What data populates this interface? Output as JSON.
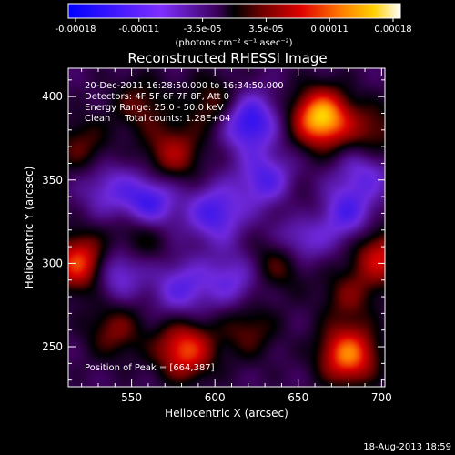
{
  "chart_data": {
    "type": "heatmap",
    "title": "Reconstructed RHESSI Image",
    "xlabel": "Heliocentric X (arcsec)",
    "ylabel": "Heliocentric Y (arcsec)",
    "xlim": [
      512,
      702
    ],
    "ylim": [
      226,
      417
    ],
    "x_ticks": [
      550,
      600,
      650,
      700
    ],
    "y_ticks": [
      250,
      300,
      350,
      400
    ],
    "colorbar": {
      "ticks": [
        "-0.00018",
        "-0.00011",
        "-3.5e-05",
        "3.5e-05",
        "0.00011",
        "0.00018"
      ],
      "units": "(photons cm⁻² s⁻¹ asec⁻²)",
      "range": [
        -0.00018,
        0.00018
      ]
    },
    "annotations": [
      "20-Dec-2011 16:28:50.000 to 16:34:50.000",
      "Detectors: 4F 5F 6F 7F 8F, Att 0",
      "Energy Range: 25.0 - 50.0 keV",
      "Clean     Total counts: 1.28E+04"
    ],
    "peak_label": "Position of Peak = [664,387]",
    "peak": [
      664,
      387
    ],
    "blobs": [
      {
        "x": 664,
        "y": 387,
        "v": 1.0
      },
      {
        "x": 680,
        "y": 245,
        "v": 0.8
      },
      {
        "x": 582,
        "y": 248,
        "v": 0.7
      },
      {
        "x": 520,
        "y": 300,
        "v": 0.75
      },
      {
        "x": 700,
        "y": 304,
        "v": 0.55
      },
      {
        "x": 575,
        "y": 366,
        "v": 0.45
      },
      {
        "x": 640,
        "y": 302,
        "v": 0.4
      },
      {
        "x": 555,
        "y": 318,
        "v": 0.35
      },
      {
        "x": 600,
        "y": 395,
        "v": 0.35
      },
      {
        "x": 520,
        "y": 370,
        "v": 0.3
      },
      {
        "x": 695,
        "y": 378,
        "v": 0.35
      },
      {
        "x": 555,
        "y": 395,
        "v": 0.3
      },
      {
        "x": 620,
        "y": 260,
        "v": 0.3
      },
      {
        "x": 540,
        "y": 260,
        "v": 0.35
      },
      {
        "x": 680,
        "y": 280,
        "v": 0.3
      },
      {
        "x": 652,
        "y": 328,
        "v": 0.25
      },
      {
        "x": 620,
        "y": 385,
        "v": -0.65
      },
      {
        "x": 560,
        "y": 335,
        "v": -0.6
      },
      {
        "x": 650,
        "y": 315,
        "v": -0.55
      },
      {
        "x": 600,
        "y": 330,
        "v": -0.5
      },
      {
        "x": 540,
        "y": 295,
        "v": -0.45
      },
      {
        "x": 678,
        "y": 330,
        "v": -0.45
      },
      {
        "x": 580,
        "y": 285,
        "v": -0.4
      },
      {
        "x": 690,
        "y": 355,
        "v": -0.35
      },
      {
        "x": 630,
        "y": 350,
        "v": -0.45
      },
      {
        "x": 610,
        "y": 290,
        "v": -0.35
      },
      {
        "x": 535,
        "y": 345,
        "v": -0.3
      }
    ]
  },
  "footer": {
    "date": "18-Aug-2013 18:59"
  },
  "colors": {
    "background": "#000000",
    "text": "#ffffff"
  }
}
